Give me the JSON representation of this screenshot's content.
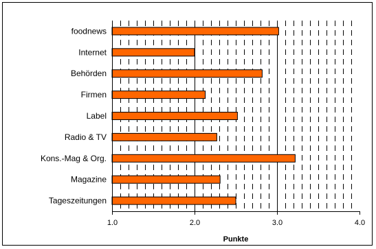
{
  "chart_data": {
    "type": "bar",
    "orientation": "horizontal",
    "categories": [
      "foodnews",
      "Internet",
      "Behörden",
      "Firmen",
      "Label",
      "Radio & TV",
      "Kons.-Mag & Org.",
      "Magazine",
      "Tageszeitungen"
    ],
    "values": [
      3.02,
      2.0,
      2.82,
      2.13,
      2.52,
      2.27,
      3.22,
      2.31,
      2.5
    ],
    "xlabel": "Punkte",
    "ylabel": "",
    "xlim": [
      1.0,
      4.0
    ],
    "xticks": [
      "1.0",
      "2.0",
      "3.0",
      "4.0"
    ],
    "grid": "dashed vertical lines every 0.1 between categories, solid at 2.0 and 3.0",
    "legend": "none",
    "colors": {
      "bar": "#ff6600",
      "bar_border": "#000000",
      "grid": "#000000"
    }
  }
}
